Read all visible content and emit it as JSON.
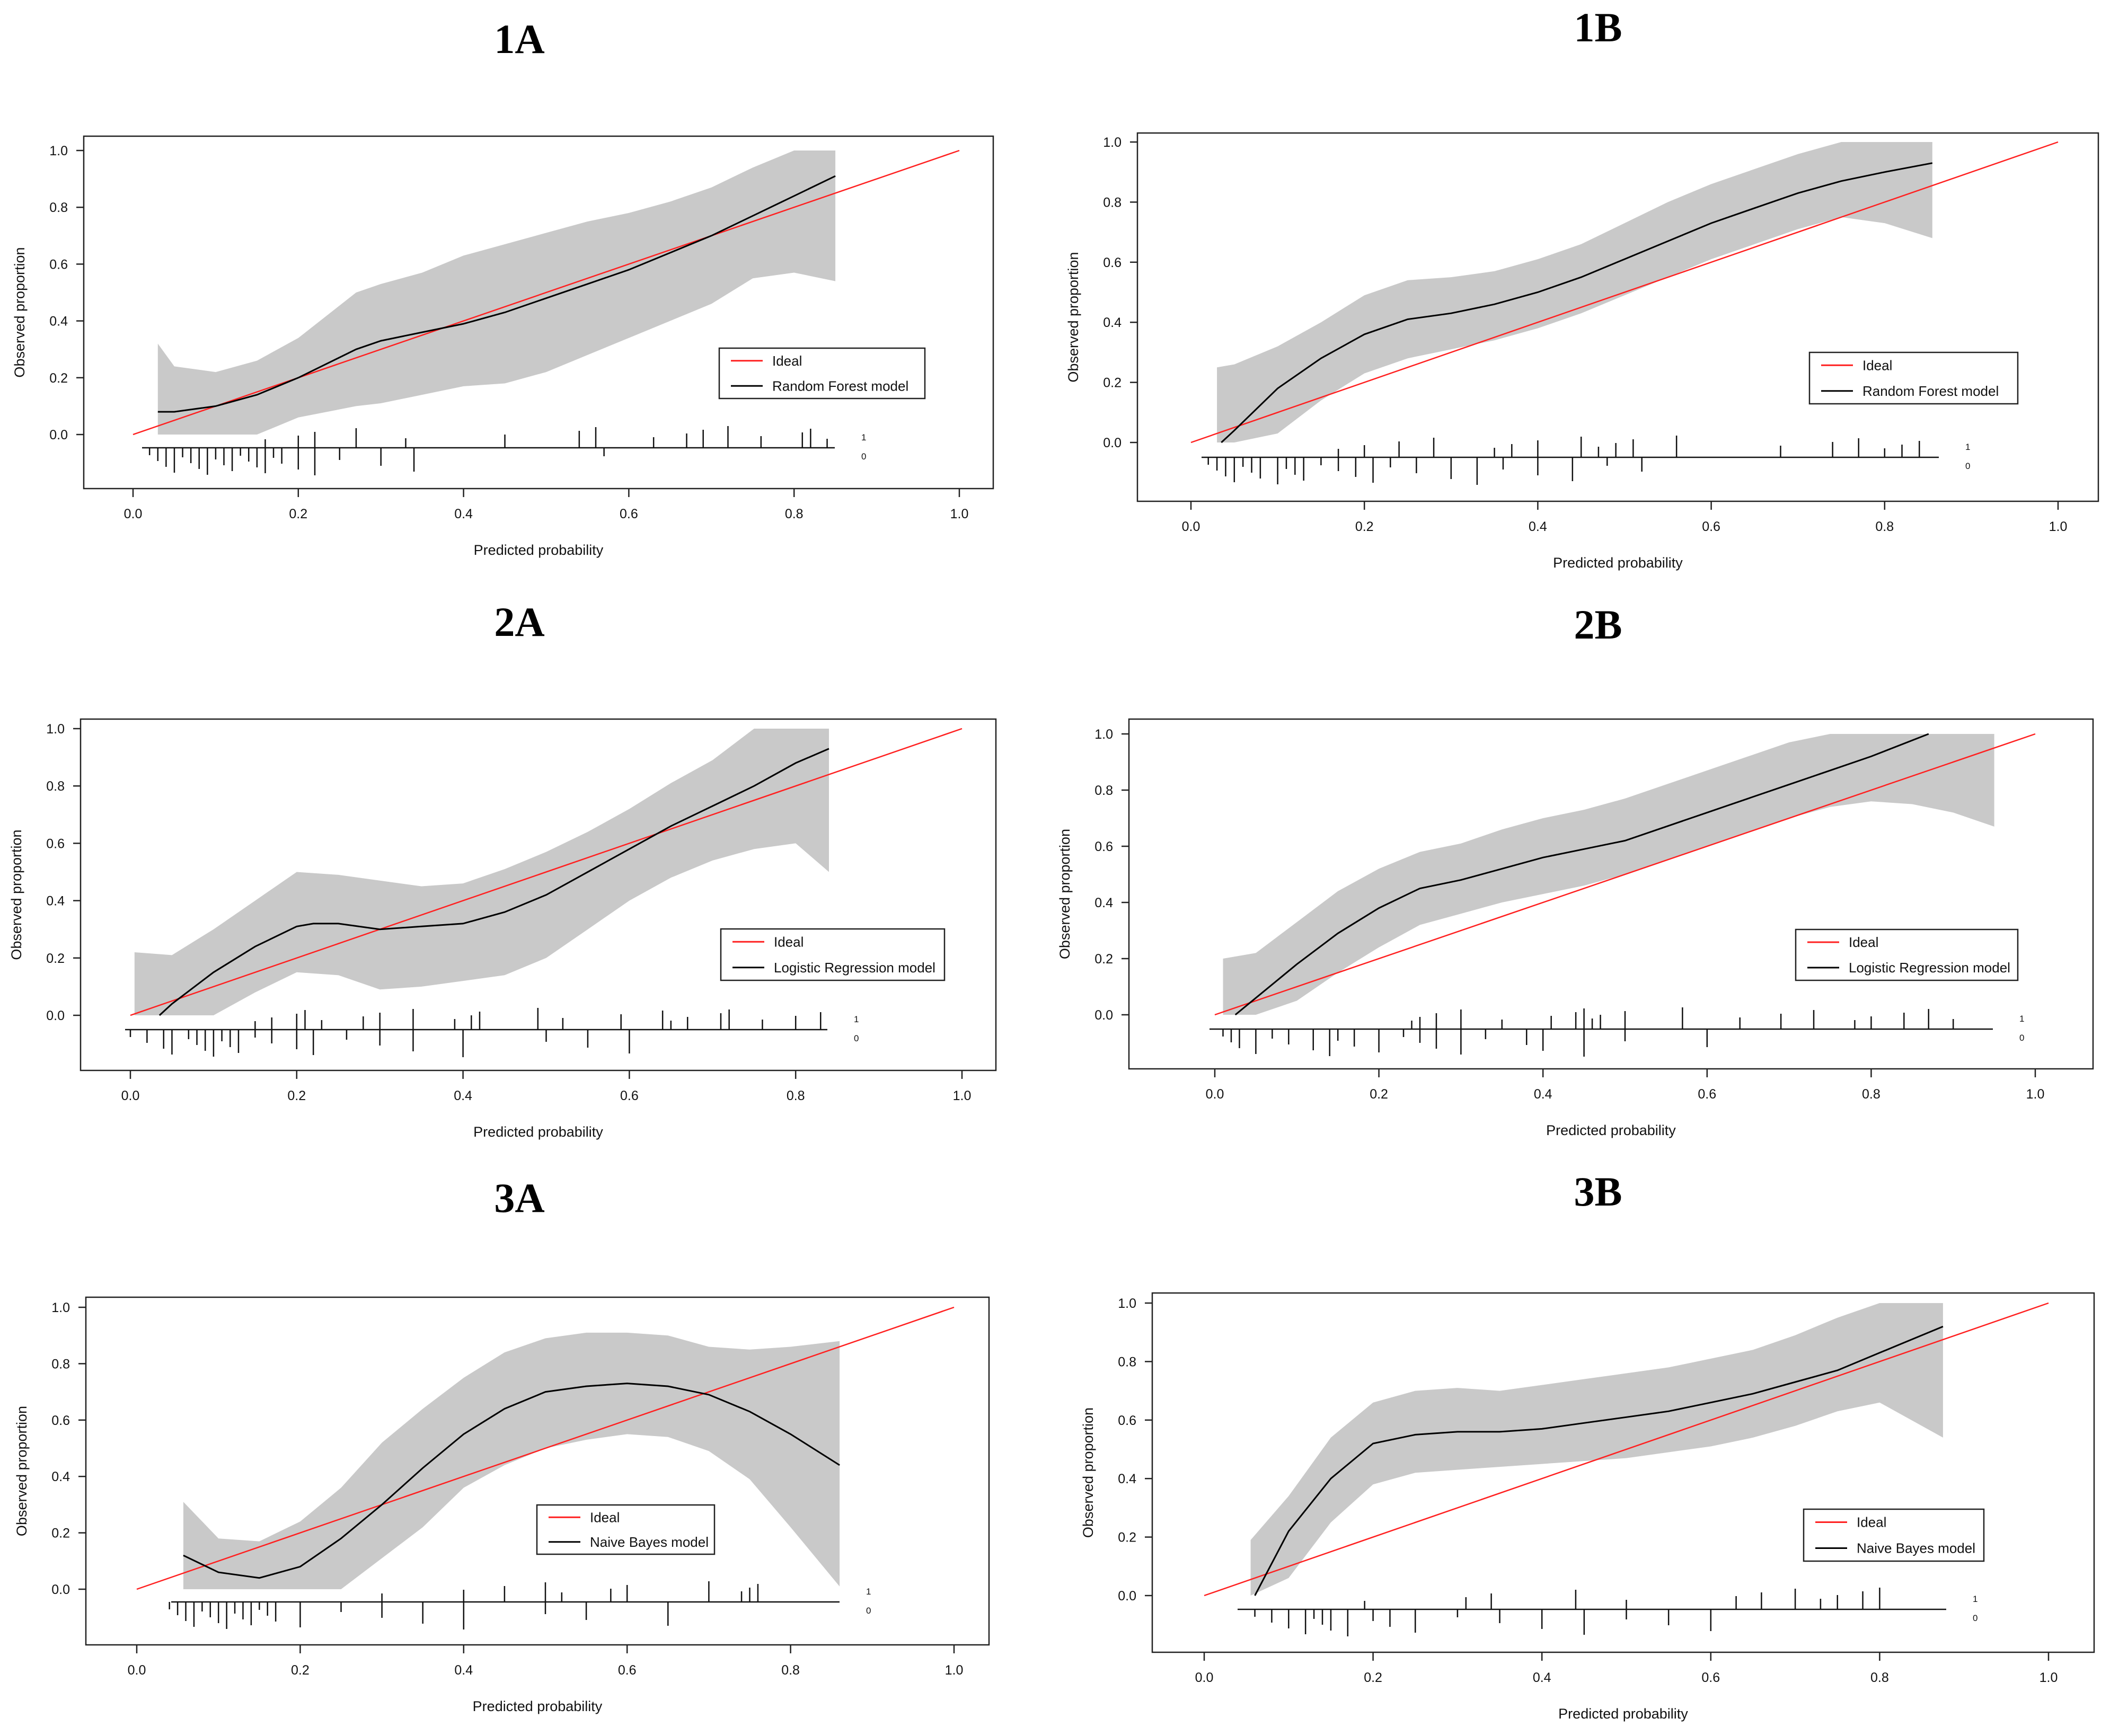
{
  "chart_data": [
    {
      "type": "line",
      "title": "1A",
      "xlabel": "Predicted probability",
      "ylabel": "Observed proportion",
      "xlim": [
        0,
        1
      ],
      "ylim": [
        -0.18,
        1.05
      ],
      "xticks": [
        "0.0",
        "0.2",
        "0.4",
        "0.6",
        "0.8",
        "1.0"
      ],
      "yticks": [
        "0.0",
        "0.2",
        "0.4",
        "0.6",
        "0.8",
        "1.0"
      ],
      "legend": [
        "Ideal",
        "Random Forest model"
      ],
      "rug_labels": [
        "1",
        "0"
      ],
      "series": [
        {
          "name": "Ideal",
          "color": "#ff2020",
          "x": [
            0,
            1
          ],
          "y": [
            0,
            1
          ]
        },
        {
          "name": "Random Forest model",
          "color": "#000000",
          "x": [
            0.03,
            0.05,
            0.1,
            0.15,
            0.2,
            0.27,
            0.3,
            0.35,
            0.4,
            0.45,
            0.5,
            0.55,
            0.6,
            0.65,
            0.7,
            0.75,
            0.8,
            0.85
          ],
          "y": [
            0.08,
            0.08,
            0.1,
            0.14,
            0.2,
            0.3,
            0.33,
            0.36,
            0.39,
            0.43,
            0.48,
            0.53,
            0.58,
            0.64,
            0.7,
            0.77,
            0.84,
            0.91
          ]
        }
      ],
      "band": {
        "x": [
          0.03,
          0.05,
          0.1,
          0.15,
          0.2,
          0.27,
          0.3,
          0.35,
          0.4,
          0.45,
          0.5,
          0.55,
          0.6,
          0.65,
          0.7,
          0.75,
          0.8,
          0.85
        ],
        "upper": [
          0.32,
          0.24,
          0.22,
          0.26,
          0.34,
          0.5,
          0.53,
          0.57,
          0.63,
          0.67,
          0.71,
          0.75,
          0.78,
          0.82,
          0.87,
          0.94,
          1.0,
          1.0
        ],
        "lower": [
          0.0,
          0.0,
          0.0,
          0.0,
          0.06,
          0.1,
          0.11,
          0.14,
          0.17,
          0.18,
          0.22,
          0.28,
          0.34,
          0.4,
          0.46,
          0.55,
          0.57,
          0.54
        ]
      },
      "rug_events": [
        0.16,
        0.2,
        0.22,
        0.27,
        0.33,
        0.45,
        0.54,
        0.56,
        0.63,
        0.67,
        0.69,
        0.72,
        0.76,
        0.81,
        0.82,
        0.84
      ],
      "rug_nonevents": [
        0.02,
        0.03,
        0.04,
        0.05,
        0.06,
        0.07,
        0.08,
        0.09,
        0.1,
        0.11,
        0.12,
        0.13,
        0.14,
        0.15,
        0.16,
        0.17,
        0.18,
        0.2,
        0.22,
        0.25,
        0.3,
        0.34,
        0.57
      ]
    },
    {
      "type": "line",
      "title": "1B",
      "xlabel": "Predicted probability",
      "ylabel": "Observed proportion",
      "xlim": [
        0,
        1
      ],
      "ylim": [
        -0.19,
        1.05
      ],
      "xticks": [
        "0.0",
        "0.2",
        "0.4",
        "0.6",
        "0.8",
        "1.0"
      ],
      "yticks": [
        "0.0",
        "0.2",
        "0.4",
        "0.6",
        "0.8",
        "1.0"
      ],
      "legend": [
        "Ideal",
        "Random Forest model"
      ],
      "rug_labels": [
        "1",
        "0"
      ],
      "series": [
        {
          "name": "Ideal",
          "color": "#ff2020",
          "x": [
            0,
            1
          ],
          "y": [
            0,
            1
          ]
        },
        {
          "name": "Random Forest model",
          "color": "#000000",
          "x": [
            0.035,
            0.05,
            0.1,
            0.15,
            0.2,
            0.25,
            0.3,
            0.35,
            0.4,
            0.45,
            0.5,
            0.55,
            0.6,
            0.65,
            0.7,
            0.75,
            0.8,
            0.855
          ],
          "y": [
            0.0,
            0.04,
            0.18,
            0.28,
            0.36,
            0.41,
            0.43,
            0.46,
            0.5,
            0.55,
            0.61,
            0.67,
            0.73,
            0.78,
            0.83,
            0.87,
            0.9,
            0.93
          ]
        }
      ],
      "band": {
        "x": [
          0.03,
          0.05,
          0.1,
          0.15,
          0.2,
          0.25,
          0.3,
          0.35,
          0.4,
          0.45,
          0.5,
          0.55,
          0.6,
          0.65,
          0.7,
          0.75,
          0.8,
          0.855
        ],
        "upper": [
          0.25,
          0.26,
          0.32,
          0.4,
          0.49,
          0.54,
          0.55,
          0.57,
          0.61,
          0.66,
          0.73,
          0.8,
          0.86,
          0.91,
          0.96,
          1.0,
          1.0,
          1.0
        ],
        "lower": [
          0.0,
          0.0,
          0.03,
          0.14,
          0.23,
          0.28,
          0.31,
          0.34,
          0.38,
          0.43,
          0.49,
          0.55,
          0.61,
          0.66,
          0.71,
          0.75,
          0.73,
          0.68
        ]
      },
      "rug_events": [
        0.17,
        0.2,
        0.24,
        0.28,
        0.35,
        0.37,
        0.4,
        0.45,
        0.47,
        0.49,
        0.51,
        0.56,
        0.68,
        0.74,
        0.77,
        0.8,
        0.82,
        0.84
      ],
      "rug_nonevents": [
        0.02,
        0.03,
        0.04,
        0.05,
        0.06,
        0.07,
        0.08,
        0.1,
        0.11,
        0.12,
        0.13,
        0.15,
        0.17,
        0.19,
        0.21,
        0.23,
        0.26,
        0.3,
        0.33,
        0.36,
        0.4,
        0.44,
        0.48,
        0.52
      ]
    },
    {
      "type": "line",
      "title": "2A",
      "xlabel": "Predicted probability",
      "ylabel": "Observed proportion",
      "xlim": [
        0,
        1
      ],
      "ylim": [
        -0.19,
        1.05
      ],
      "xticks": [
        "0.0",
        "0.2",
        "0.4",
        "0.6",
        "0.8",
        "1.0"
      ],
      "yticks": [
        "0.0",
        "0.2",
        "0.4",
        "0.6",
        "0.8",
        "1.0"
      ],
      "legend": [
        "Ideal",
        "Logistic Regression model"
      ],
      "rug_labels": [
        "1",
        "0"
      ],
      "series": [
        {
          "name": "Ideal",
          "color": "#ff2020",
          "x": [
            0,
            1
          ],
          "y": [
            0,
            1
          ]
        },
        {
          "name": "Logistic Regression model",
          "color": "#000000",
          "x": [
            0.035,
            0.05,
            0.1,
            0.15,
            0.2,
            0.22,
            0.25,
            0.3,
            0.35,
            0.4,
            0.45,
            0.5,
            0.55,
            0.6,
            0.65,
            0.7,
            0.75,
            0.8,
            0.84
          ],
          "y": [
            0.0,
            0.04,
            0.15,
            0.24,
            0.31,
            0.32,
            0.32,
            0.3,
            0.31,
            0.32,
            0.36,
            0.42,
            0.5,
            0.58,
            0.66,
            0.73,
            0.8,
            0.88,
            0.93
          ]
        }
      ],
      "band": {
        "x": [
          0.005,
          0.05,
          0.1,
          0.15,
          0.2,
          0.25,
          0.3,
          0.35,
          0.4,
          0.45,
          0.5,
          0.55,
          0.6,
          0.65,
          0.7,
          0.75,
          0.8,
          0.84
        ],
        "upper": [
          0.22,
          0.21,
          0.3,
          0.4,
          0.5,
          0.49,
          0.47,
          0.45,
          0.46,
          0.51,
          0.57,
          0.64,
          0.72,
          0.81,
          0.89,
          1.0,
          1.0,
          1.0
        ],
        "lower": [
          0.0,
          0.0,
          0.0,
          0.08,
          0.15,
          0.14,
          0.09,
          0.1,
          0.12,
          0.14,
          0.2,
          0.3,
          0.4,
          0.48,
          0.54,
          0.58,
          0.6,
          0.5
        ]
      },
      "rug_events": [
        0.15,
        0.17,
        0.2,
        0.21,
        0.23,
        0.28,
        0.3,
        0.34,
        0.39,
        0.41,
        0.42,
        0.49,
        0.52,
        0.59,
        0.64,
        0.65,
        0.67,
        0.71,
        0.72,
        0.76,
        0.8,
        0.83
      ],
      "rug_nonevents": [
        0.0,
        0.02,
        0.04,
        0.05,
        0.07,
        0.08,
        0.09,
        0.1,
        0.11,
        0.12,
        0.13,
        0.15,
        0.17,
        0.2,
        0.22,
        0.26,
        0.3,
        0.34,
        0.4,
        0.5,
        0.55,
        0.6
      ]
    },
    {
      "type": "line",
      "title": "2B",
      "xlabel": "Predicted probability",
      "ylabel": "Observed proportion",
      "xlim": [
        0,
        1
      ],
      "ylim": [
        -0.19,
        1.05
      ],
      "xticks": [
        "0.0",
        "0.2",
        "0.4",
        "0.6",
        "0.8",
        "1.0"
      ],
      "yticks": [
        "0.0",
        "0.2",
        "0.4",
        "0.6",
        "0.8",
        "1.0"
      ],
      "legend": [
        "Ideal",
        "Logistic Regression model"
      ],
      "rug_labels": [
        "1",
        "0"
      ],
      "series": [
        {
          "name": "Ideal",
          "color": "#ff2020",
          "x": [
            0,
            1
          ],
          "y": [
            0,
            1
          ]
        },
        {
          "name": "Logistic Regression model",
          "color": "#000000",
          "x": [
            0.025,
            0.05,
            0.1,
            0.15,
            0.2,
            0.25,
            0.3,
            0.35,
            0.4,
            0.45,
            0.5,
            0.55,
            0.6,
            0.65,
            0.7,
            0.75,
            0.8,
            0.87
          ],
          "y": [
            0.0,
            0.06,
            0.18,
            0.29,
            0.38,
            0.45,
            0.48,
            0.52,
            0.56,
            0.59,
            0.62,
            0.67,
            0.72,
            0.77,
            0.82,
            0.87,
            0.92,
            1.0
          ]
        }
      ],
      "band": {
        "x": [
          0.01,
          0.05,
          0.1,
          0.15,
          0.2,
          0.25,
          0.3,
          0.35,
          0.4,
          0.45,
          0.5,
          0.55,
          0.6,
          0.65,
          0.7,
          0.75,
          0.8,
          0.85,
          0.9,
          0.95
        ],
        "upper": [
          0.2,
          0.22,
          0.33,
          0.44,
          0.52,
          0.58,
          0.61,
          0.66,
          0.7,
          0.73,
          0.77,
          0.82,
          0.87,
          0.92,
          0.97,
          1.0,
          1.0,
          1.0,
          1.0,
          1.0
        ],
        "lower": [
          0.0,
          0.0,
          0.05,
          0.15,
          0.24,
          0.32,
          0.36,
          0.4,
          0.43,
          0.46,
          0.5,
          0.55,
          0.6,
          0.65,
          0.7,
          0.74,
          0.76,
          0.75,
          0.72,
          0.67
        ]
      },
      "rug_events": [
        0.24,
        0.25,
        0.27,
        0.3,
        0.35,
        0.41,
        0.44,
        0.45,
        0.46,
        0.47,
        0.5,
        0.57,
        0.64,
        0.69,
        0.73,
        0.78,
        0.8,
        0.84,
        0.87,
        0.9
      ],
      "rug_nonevents": [
        0.01,
        0.02,
        0.03,
        0.05,
        0.07,
        0.09,
        0.12,
        0.14,
        0.15,
        0.17,
        0.2,
        0.23,
        0.25,
        0.27,
        0.3,
        0.33,
        0.38,
        0.4,
        0.45,
        0.5,
        0.6
      ]
    },
    {
      "type": "line",
      "title": "3A",
      "xlabel": "Predicted probability",
      "ylabel": "Observed proportion",
      "xlim": [
        0,
        1
      ],
      "ylim": [
        -0.18,
        1.05
      ],
      "xticks": [
        "0.0",
        "0.2",
        "0.4",
        "0.6",
        "0.8",
        "1.0"
      ],
      "yticks": [
        "0.0",
        "0.2",
        "0.4",
        "0.6",
        "0.8",
        "1.0"
      ],
      "legend": [
        "Ideal",
        "Naive Bayes model"
      ],
      "rug_labels": [
        "1",
        "0"
      ],
      "series": [
        {
          "name": "Ideal",
          "color": "#ff2020",
          "x": [
            0,
            1
          ],
          "y": [
            0,
            1
          ]
        },
        {
          "name": "Naive Bayes model",
          "color": "#000000",
          "x": [
            0.057,
            0.1,
            0.15,
            0.2,
            0.25,
            0.3,
            0.35,
            0.4,
            0.45,
            0.5,
            0.55,
            0.6,
            0.65,
            0.7,
            0.75,
            0.8,
            0.86
          ],
          "y": [
            0.12,
            0.06,
            0.04,
            0.08,
            0.18,
            0.3,
            0.43,
            0.55,
            0.64,
            0.7,
            0.72,
            0.73,
            0.72,
            0.69,
            0.63,
            0.55,
            0.44
          ]
        }
      ],
      "band": {
        "x": [
          0.057,
          0.1,
          0.15,
          0.2,
          0.25,
          0.3,
          0.35,
          0.4,
          0.45,
          0.5,
          0.55,
          0.6,
          0.65,
          0.7,
          0.75,
          0.8,
          0.86
        ],
        "upper": [
          0.31,
          0.18,
          0.17,
          0.24,
          0.36,
          0.52,
          0.64,
          0.75,
          0.84,
          0.89,
          0.91,
          0.91,
          0.9,
          0.86,
          0.85,
          0.86,
          0.88
        ],
        "lower": [
          0.0,
          0.0,
          0.0,
          0.0,
          0.0,
          0.11,
          0.22,
          0.36,
          0.44,
          0.5,
          0.53,
          0.55,
          0.54,
          0.49,
          0.39,
          0.22,
          0.01
        ]
      },
      "rug_events": [
        0.3,
        0.4,
        0.45,
        0.5,
        0.52,
        0.58,
        0.6,
        0.7,
        0.74,
        0.75,
        0.76
      ],
      "rug_nonevents": [
        0.04,
        0.05,
        0.06,
        0.07,
        0.08,
        0.09,
        0.1,
        0.11,
        0.12,
        0.13,
        0.14,
        0.15,
        0.16,
        0.17,
        0.2,
        0.25,
        0.3,
        0.35,
        0.4,
        0.5,
        0.55,
        0.65
      ]
    },
    {
      "type": "line",
      "title": "3B",
      "xlabel": "Predicted probability",
      "ylabel": "Observed proportion",
      "xlim": [
        0,
        1
      ],
      "ylim": [
        -0.19,
        1.05
      ],
      "xticks": [
        "0.0",
        "0.2",
        "0.4",
        "0.6",
        "0.8",
        "1.0"
      ],
      "yticks": [
        "0.0",
        "0.2",
        "0.4",
        "0.6",
        "0.8",
        "1.0"
      ],
      "legend": [
        "Ideal",
        "Naive Bayes model"
      ],
      "rug_labels": [
        "1",
        "0"
      ],
      "series": [
        {
          "name": "Ideal",
          "color": "#ff2020",
          "x": [
            0,
            1
          ],
          "y": [
            0,
            1
          ]
        },
        {
          "name": "Naive Bayes model",
          "color": "#000000",
          "x": [
            0.06,
            0.1,
            0.15,
            0.2,
            0.25,
            0.3,
            0.35,
            0.4,
            0.45,
            0.5,
            0.55,
            0.6,
            0.65,
            0.7,
            0.75,
            0.8,
            0.875
          ],
          "y": [
            0.0,
            0.22,
            0.4,
            0.52,
            0.55,
            0.56,
            0.56,
            0.57,
            0.59,
            0.61,
            0.63,
            0.66,
            0.69,
            0.73,
            0.77,
            0.83,
            0.92
          ]
        }
      ],
      "band": {
        "x": [
          0.055,
          0.1,
          0.15,
          0.2,
          0.25,
          0.3,
          0.35,
          0.4,
          0.45,
          0.5,
          0.55,
          0.6,
          0.65,
          0.7,
          0.75,
          0.8,
          0.875
        ],
        "upper": [
          0.19,
          0.34,
          0.54,
          0.66,
          0.7,
          0.71,
          0.7,
          0.72,
          0.74,
          0.76,
          0.78,
          0.81,
          0.84,
          0.89,
          0.95,
          1.0,
          1.0
        ],
        "lower": [
          0.0,
          0.06,
          0.25,
          0.38,
          0.42,
          0.43,
          0.44,
          0.45,
          0.46,
          0.47,
          0.49,
          0.51,
          0.54,
          0.58,
          0.63,
          0.66,
          0.54
        ]
      },
      "rug_events": [
        0.19,
        0.31,
        0.34,
        0.44,
        0.5,
        0.63,
        0.66,
        0.7,
        0.73,
        0.75,
        0.78,
        0.8
      ],
      "rug_nonevents": [
        0.06,
        0.08,
        0.1,
        0.12,
        0.13,
        0.14,
        0.15,
        0.17,
        0.2,
        0.22,
        0.25,
        0.3,
        0.35,
        0.4,
        0.45,
        0.5,
        0.55,
        0.6
      ]
    }
  ]
}
